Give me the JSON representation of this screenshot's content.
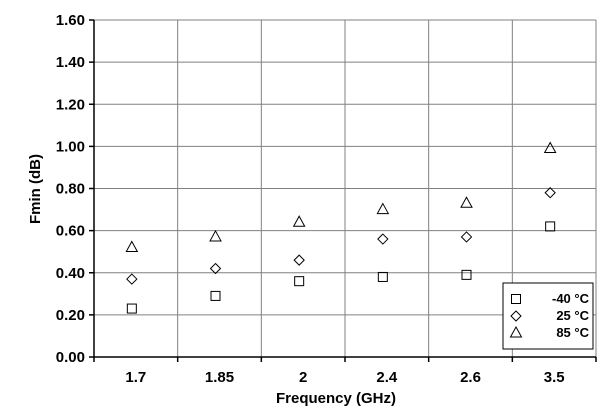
{
  "chart_data": {
    "type": "scatter",
    "title": "",
    "xlabel": "Frequency (GHz)",
    "ylabel": "Fmin (dB)",
    "categories": [
      "1.7",
      "1.85",
      "2",
      "2.4",
      "2.6",
      "3.5"
    ],
    "ylim": [
      0,
      1.6
    ],
    "yticks": [
      "0.00",
      "0.20",
      "0.40",
      "0.60",
      "0.80",
      "1.00",
      "1.20",
      "1.40",
      "1.60"
    ],
    "grid": true,
    "legend_position": "bottom-right",
    "series": [
      {
        "name": "-40 °C",
        "marker": "square",
        "values": [
          0.23,
          0.29,
          0.36,
          0.38,
          0.39,
          0.62
        ]
      },
      {
        "name": "25 °C",
        "marker": "diamond",
        "values": [
          0.37,
          0.42,
          0.46,
          0.56,
          0.57,
          0.78
        ]
      },
      {
        "name": "85 °C",
        "marker": "triangle",
        "values": [
          0.52,
          0.57,
          0.64,
          0.7,
          0.73,
          0.99
        ]
      }
    ],
    "colors": {
      "marker": "#000000",
      "grid": "#808080",
      "axis": "#000000",
      "background": "#ffffff"
    }
  }
}
